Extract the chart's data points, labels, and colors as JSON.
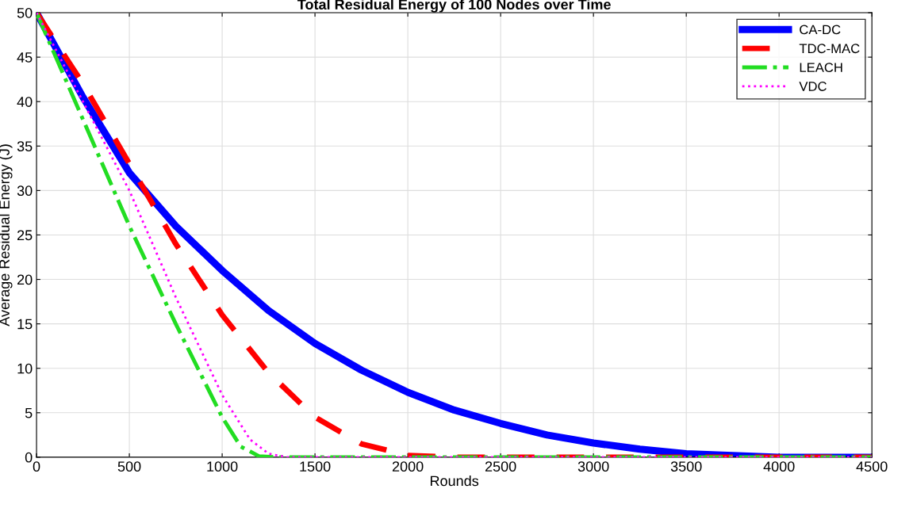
{
  "chart_data": {
    "type": "line",
    "title": "Total Residual Energy of 100 Nodes over Time",
    "xlabel": "Rounds",
    "ylabel": "Average Residual Energy (J)",
    "xlim": [
      0,
      4500
    ],
    "xticks": [
      0,
      500,
      1000,
      1500,
      2000,
      2500,
      3000,
      3500,
      4000,
      4500
    ],
    "ylim": [
      0,
      50
    ],
    "yticks": [
      0,
      5,
      10,
      15,
      20,
      25,
      30,
      35,
      40,
      45,
      50
    ],
    "grid": true,
    "legend": "top right",
    "series": [
      {
        "name": "CA-DC",
        "color": "#0000ff",
        "line_style": "solid",
        "x": [
          0,
          250,
          500,
          750,
          1000,
          1250,
          1500,
          1750,
          2000,
          2250,
          2500,
          2750,
          3000,
          3250,
          3500,
          3750,
          4000,
          4500
        ],
        "values": [
          50,
          40.5,
          32,
          26,
          21,
          16.5,
          12.8,
          9.8,
          7.3,
          5.3,
          3.8,
          2.5,
          1.6,
          0.9,
          0.4,
          0.2,
          0,
          0
        ]
      },
      {
        "name": "TDC-MAC",
        "color": "#ff0000",
        "line_style": "dashed",
        "x": [
          0,
          250,
          500,
          750,
          1000,
          1250,
          1500,
          1750,
          2000,
          2250,
          4500
        ],
        "values": [
          50,
          42,
          33,
          24,
          16,
          9.5,
          4.5,
          1.5,
          0.2,
          0,
          0
        ]
      },
      {
        "name": "LEACH",
        "color": "#22dd22",
        "line_style": "dashdot",
        "x": [
          0,
          250,
          500,
          750,
          1000,
          1100,
          1200,
          1300,
          4500
        ],
        "values": [
          50,
          38,
          26,
          15,
          4.5,
          1.2,
          0.1,
          0,
          0
        ]
      },
      {
        "name": "VDC",
        "color": "#ff00ff",
        "line_style": "dotted",
        "x": [
          0,
          250,
          500,
          750,
          1000,
          1150,
          1250,
          1350,
          4500
        ],
        "values": [
          50,
          40,
          30,
          18,
          7,
          2,
          0.4,
          0,
          0
        ]
      }
    ]
  }
}
